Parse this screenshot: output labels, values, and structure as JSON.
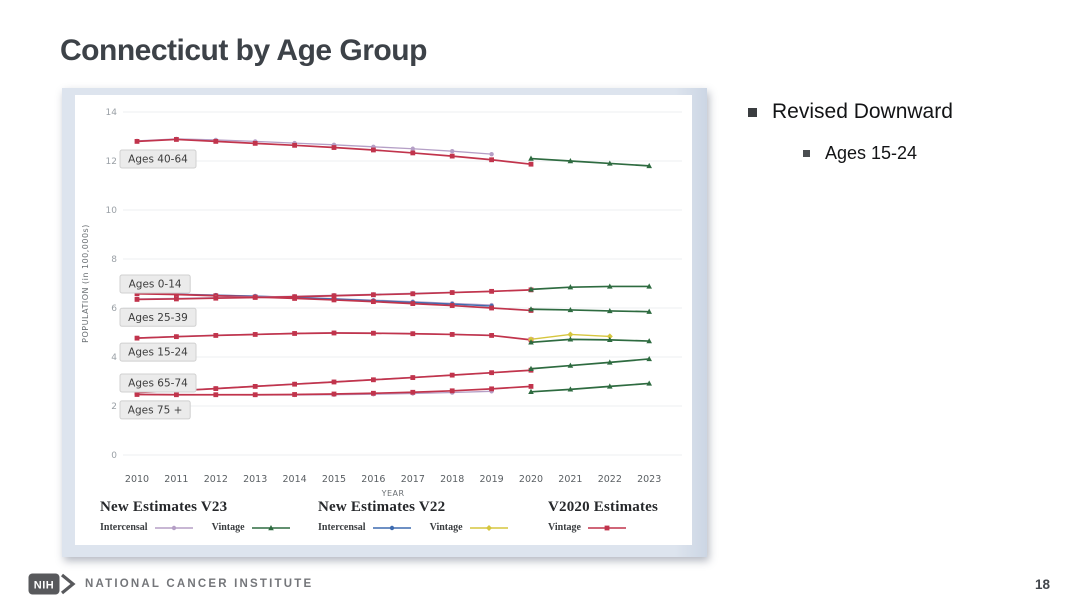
{
  "slide": {
    "title": "Connecticut by Age Group",
    "page_number": "18",
    "bullets": {
      "main": "Revised Downward",
      "sub": "Ages 15-24"
    },
    "footer": {
      "logo_text": "NIH",
      "org_name": "NATIONAL CANCER INSTITUTE"
    }
  },
  "chart_data": {
    "type": "line",
    "title": "",
    "xlabel": "YEAR",
    "ylabel": "POPULATION (in 100,000s)",
    "ylim": [
      0,
      14
    ],
    "yticks": [
      0,
      2,
      4,
      6,
      8,
      10,
      12,
      14
    ],
    "x_years": [
      2010,
      2011,
      2012,
      2013,
      2014,
      2015,
      2016,
      2017,
      2018,
      2019,
      2020,
      2021,
      2022,
      2023
    ],
    "grid": true,
    "legend_position": "bottom",
    "series_styles": {
      "v23_intercensal": {
        "name": "New Estimates V23 Intercensal",
        "color": "#b59fc6",
        "marker": "circle",
        "width": 1.3
      },
      "v23_vintage": {
        "name": "New Estimates V23 Vintage",
        "color": "#2e6b40",
        "marker": "triangle",
        "width": 1.7
      },
      "v22_intercensal": {
        "name": "New Estimates V22 Intercensal",
        "color": "#3f6cb0",
        "marker": "circle",
        "width": 1.4
      },
      "v22_vintage": {
        "name": "New Estimates V22 Vintage",
        "color": "#d6c63e",
        "marker": "diamond",
        "width": 1.4
      },
      "v2020_vintage": {
        "name": "V2020 Estimates Vintage",
        "color": "#c1344c",
        "marker": "square",
        "width": 1.7
      }
    },
    "legend": {
      "groups": [
        {
          "header": "New Estimates V23",
          "items": [
            {
              "label": "Intercensal",
              "series": "v23_intercensal"
            },
            {
              "label": "Vintage",
              "series": "v23_vintage"
            }
          ]
        },
        {
          "header": "New Estimates V22",
          "items": [
            {
              "label": "Intercensal",
              "series": "v22_intercensal"
            },
            {
              "label": "Vintage",
              "series": "v22_vintage"
            }
          ]
        },
        {
          "header": "V2020 Estimates",
          "items": [
            {
              "label": "Vintage",
              "series": "v2020_vintage"
            }
          ]
        }
      ]
    },
    "age_groups": [
      {
        "label": "Ages 40-64",
        "label_value": 12.08,
        "series": [
          {
            "key": "v23_intercensal",
            "start": 2010,
            "values": [
              12.82,
              12.9,
              12.86,
              12.8,
              12.73,
              12.66,
              12.58,
              12.5,
              12.4,
              12.28
            ]
          },
          {
            "key": "v2020_vintage",
            "start": 2010,
            "values": [
              12.8,
              12.88,
              12.8,
              12.72,
              12.64,
              12.55,
              12.45,
              12.33,
              12.2,
              12.05,
              11.87
            ]
          },
          {
            "key": "v23_vintage",
            "start": 2020,
            "values": [
              12.1,
              12.0,
              11.9,
              11.8
            ]
          }
        ]
      },
      {
        "label": "Ages 0-14",
        "label_value": 6.98,
        "series": [
          {
            "key": "v23_intercensal",
            "start": 2010,
            "values": [
              6.6,
              6.57,
              6.53,
              6.49,
              6.44,
              6.38,
              6.32,
              6.26,
              6.19,
              6.12
            ]
          },
          {
            "key": "v22_intercensal",
            "start": 2010,
            "values": [
              6.6,
              6.56,
              6.52,
              6.48,
              6.43,
              6.37,
              6.3,
              6.23,
              6.16,
              6.08
            ]
          },
          {
            "key": "v2020_vintage",
            "start": 2010,
            "values": [
              6.58,
              6.55,
              6.5,
              6.45,
              6.39,
              6.33,
              6.26,
              6.18,
              6.1,
              6.0,
              5.9
            ]
          },
          {
            "key": "v23_vintage",
            "start": 2020,
            "values": [
              5.95,
              5.92,
              5.88,
              5.85
            ]
          }
        ]
      },
      {
        "label": "Ages 25-39",
        "label_value": 5.62,
        "series": [
          {
            "key": "v23_intercensal",
            "start": 2010,
            "values": [
              6.37,
              6.39,
              6.42,
              6.45,
              6.48,
              6.52,
              6.56,
              6.6,
              6.64,
              6.68
            ]
          },
          {
            "key": "v2020_vintage",
            "start": 2010,
            "values": [
              6.35,
              6.37,
              6.4,
              6.43,
              6.46,
              6.5,
              6.54,
              6.58,
              6.63,
              6.68,
              6.74
            ]
          },
          {
            "key": "v23_vintage",
            "start": 2020,
            "values": [
              6.76,
              6.85,
              6.88,
              6.88
            ]
          }
        ]
      },
      {
        "label": "Ages 15-24",
        "label_value": 4.2,
        "series": [
          {
            "key": "v23_intercensal",
            "start": 2010,
            "values": [
              4.78,
              4.84,
              4.89,
              4.93,
              4.97,
              4.99,
              4.98,
              4.96,
              4.93,
              4.89
            ]
          },
          {
            "key": "v2020_vintage",
            "start": 2010,
            "values": [
              4.77,
              4.83,
              4.88,
              4.92,
              4.96,
              4.98,
              4.97,
              4.95,
              4.92,
              4.88,
              4.7
            ]
          },
          {
            "key": "v22_vintage",
            "start": 2020,
            "values": [
              4.72,
              4.92,
              4.84
            ]
          },
          {
            "key": "v23_vintage",
            "start": 2020,
            "values": [
              4.6,
              4.72,
              4.7,
              4.65
            ]
          }
        ]
      },
      {
        "label": "Ages 65-74",
        "label_value": 2.94,
        "series": [
          {
            "key": "v23_intercensal",
            "start": 2010,
            "values": [
              2.56,
              2.63,
              2.72,
              2.81,
              2.9,
              2.99,
              3.08,
              3.17,
              3.26,
              3.35
            ]
          },
          {
            "key": "v2020_vintage",
            "start": 2010,
            "values": [
              2.55,
              2.62,
              2.71,
              2.8,
              2.89,
              2.98,
              3.07,
              3.16,
              3.26,
              3.36,
              3.46
            ]
          },
          {
            "key": "v23_vintage",
            "start": 2020,
            "values": [
              3.52,
              3.65,
              3.78,
              3.92
            ]
          }
        ]
      },
      {
        "label": "Ages 75 +",
        "label_value": 1.84,
        "series": [
          {
            "key": "v23_intercensal",
            "start": 2010,
            "values": [
              2.48,
              2.47,
              2.46,
              2.45,
              2.45,
              2.46,
              2.48,
              2.51,
              2.55,
              2.6
            ]
          },
          {
            "key": "v2020_vintage",
            "start": 2010,
            "values": [
              2.47,
              2.46,
              2.46,
              2.46,
              2.47,
              2.49,
              2.52,
              2.56,
              2.62,
              2.7,
              2.8
            ]
          },
          {
            "key": "v23_vintage",
            "start": 2020,
            "values": [
              2.58,
              2.68,
              2.8,
              2.92
            ]
          }
        ]
      }
    ]
  }
}
